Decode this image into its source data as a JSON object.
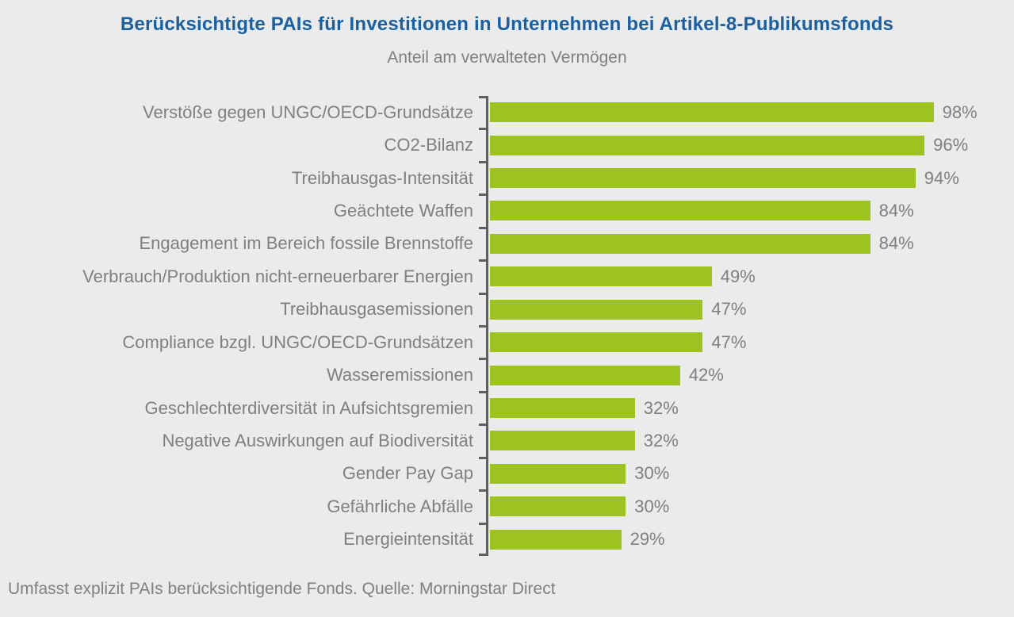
{
  "colors": {
    "background": "#ebebeb",
    "bar": "#9cc31e",
    "title": "#1760a5",
    "text": "#7f7f7f",
    "axis": "#5f5f5f"
  },
  "chart_data": {
    "type": "bar",
    "orientation": "horizontal",
    "title": "Berücksichtigte PAIs für Investitionen in Unternehmen bei Artikel-8-Publikumsfonds",
    "subtitle": "Anteil am verwalteten Vermögen",
    "footnote": "Umfasst explizit PAIs berücksichtigende Fonds. Quelle: Morningstar Direct",
    "categories": [
      "Verstöße gegen UNGC/OECD-Grundsätze",
      "CO2-Bilanz",
      "Treibhausgas-Intensität",
      "Geächtete Waffen",
      "Engagement im Bereich fossile Brennstoffe",
      "Verbrauch/Produktion nicht-erneuerbarer Energien",
      "Treibhausgasemissionen",
      "Compliance bzgl. UNGC/OECD-Grundsätzen",
      "Wasseremissionen",
      "Geschlechterdiversität in Aufsichtsgremien",
      "Negative Auswirkungen auf Biodiversität",
      "Gender Pay Gap",
      "Gefährliche Abfälle",
      "Energieintensität"
    ],
    "values": [
      98,
      96,
      94,
      84,
      84,
      49,
      47,
      47,
      42,
      32,
      32,
      30,
      30,
      29
    ],
    "value_suffix": "%",
    "xlim": [
      0,
      100
    ],
    "grid": false,
    "legend": false,
    "value_labels_position": "end-of-bar",
    "category_labels_position": "left-of-axis"
  }
}
